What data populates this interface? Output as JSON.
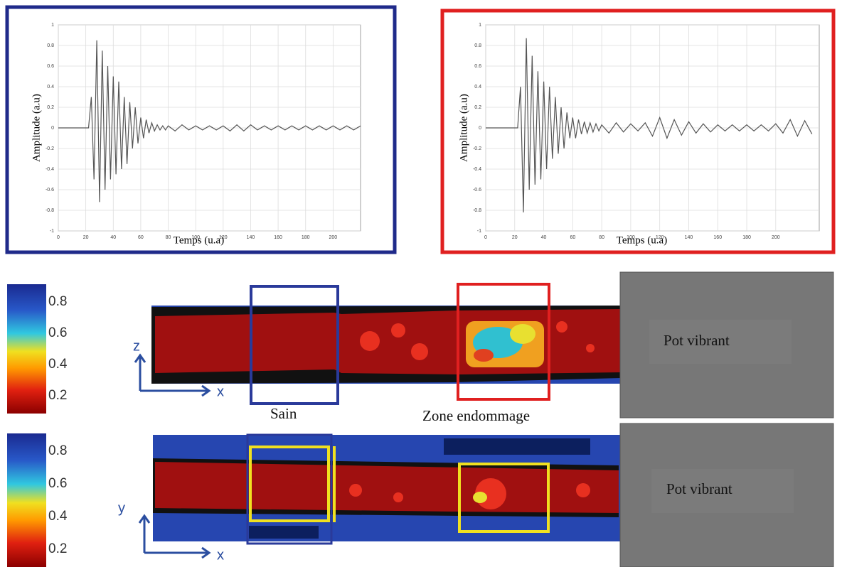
{
  "chart_data": [
    {
      "type": "line",
      "xlabel": "Temps (u.a)",
      "ylabel": "Amplitude (a.u)",
      "color": "#555555",
      "frame_color": "#1f2a8a",
      "grid": true,
      "xlim": [
        0,
        220
      ],
      "ylim": [
        -1,
        1
      ],
      "xticks": [
        0,
        20,
        40,
        60,
        80,
        100,
        120,
        140,
        160,
        180,
        200
      ],
      "yticks": [
        -1,
        -0.8,
        -0.6,
        -0.4,
        -0.2,
        0,
        0.2,
        0.4,
        0.6,
        0.8,
        1
      ],
      "x": [
        0,
        10,
        20,
        22,
        24,
        26,
        28,
        30,
        32,
        34,
        36,
        38,
        40,
        42,
        44,
        46,
        48,
        50,
        52,
        54,
        56,
        58,
        60,
        62,
        64,
        66,
        68,
        70,
        72,
        74,
        76,
        78,
        80,
        85,
        90,
        95,
        100,
        105,
        110,
        115,
        120,
        125,
        130,
        135,
        140,
        145,
        150,
        155,
        160,
        165,
        170,
        175,
        180,
        185,
        190,
        195,
        200,
        205,
        210,
        215,
        220
      ],
      "values": [
        0,
        0,
        0,
        0,
        0.3,
        -0.5,
        0.85,
        -0.72,
        0.75,
        -0.6,
        0.6,
        -0.5,
        0.5,
        -0.45,
        0.45,
        -0.4,
        0.3,
        -0.35,
        0.25,
        -0.2,
        0.2,
        -0.15,
        0.1,
        -0.1,
        0.08,
        -0.05,
        0.05,
        -0.03,
        0.03,
        -0.02,
        0.02,
        -0.02,
        0.02,
        -0.03,
        0.03,
        -0.02,
        0.02,
        -0.02,
        0.02,
        -0.02,
        0.02,
        -0.03,
        0.03,
        -0.03,
        0.03,
        -0.02,
        0.02,
        -0.02,
        0.02,
        -0.02,
        0.02,
        -0.02,
        0.02,
        -0.02,
        0.02,
        -0.02,
        0.02,
        -0.02,
        0.02,
        -0.02,
        0.02
      ]
    },
    {
      "type": "line",
      "xlabel": "Temps (u.a)",
      "ylabel": "Amplitude (a.u)",
      "color": "#555555",
      "frame_color": "#e02020",
      "grid": true,
      "xlim": [
        0,
        230
      ],
      "ylim": [
        -1,
        1
      ],
      "xticks": [
        0,
        20,
        40,
        60,
        80,
        100,
        120,
        140,
        160,
        180,
        200
      ],
      "yticks": [
        -1,
        -0.8,
        -0.6,
        -0.4,
        -0.2,
        0,
        0.2,
        0.4,
        0.6,
        0.8,
        1
      ],
      "x": [
        0,
        10,
        20,
        22,
        24,
        26,
        28,
        30,
        32,
        34,
        36,
        38,
        40,
        42,
        44,
        46,
        48,
        50,
        52,
        54,
        56,
        58,
        60,
        62,
        64,
        66,
        68,
        70,
        72,
        74,
        76,
        78,
        80,
        85,
        90,
        95,
        100,
        105,
        110,
        115,
        120,
        125,
        130,
        135,
        140,
        145,
        150,
        155,
        160,
        165,
        170,
        175,
        180,
        185,
        190,
        195,
        200,
        205,
        210,
        215,
        220,
        225
      ],
      "values": [
        0,
        0,
        0,
        0,
        0.4,
        -0.82,
        0.87,
        -0.6,
        0.7,
        -0.55,
        0.55,
        -0.5,
        0.45,
        -0.4,
        0.4,
        -0.3,
        0.3,
        -0.25,
        0.2,
        -0.2,
        0.15,
        -0.1,
        0.1,
        -0.1,
        0.08,
        -0.06,
        0.06,
        -0.05,
        0.05,
        -0.04,
        0.04,
        -0.03,
        0.03,
        -0.05,
        0.05,
        -0.04,
        0.04,
        -0.03,
        0.05,
        -0.08,
        0.1,
        -0.1,
        0.08,
        -0.07,
        0.06,
        -0.05,
        0.04,
        -0.04,
        0.03,
        -0.03,
        0.03,
        -0.03,
        0.03,
        -0.03,
        0.03,
        -0.03,
        0.04,
        -0.05,
        0.08,
        -0.08,
        0.07,
        -0.06
      ]
    }
  ],
  "figure": {
    "colorbar_ticks": [
      0.8,
      0.6,
      0.4,
      0.2
    ],
    "top_axes": [
      "z",
      "x"
    ],
    "bottom_axes": [
      "y",
      "x"
    ],
    "healthy_label": "Sain",
    "damage_label": "Zone endommage",
    "shaker_labels": [
      "Pot vibrant",
      "Pot vibrant"
    ]
  }
}
